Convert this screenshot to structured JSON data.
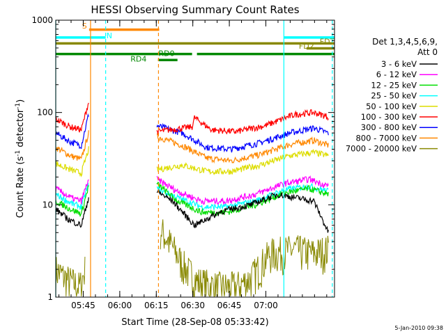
{
  "chart_data": {
    "type": "line",
    "title": "HESSI Observing Summary Count Rates",
    "xlabel": "Start Time (28-Sep-08 05:33:42)",
    "ylabel_parts": [
      "Count Rate (s",
      "-1",
      " detector",
      "-1",
      ")"
    ],
    "ylog": true,
    "xlim_min": [
      0,
      114.5
    ],
    "ylim": [
      1,
      1000
    ],
    "x_ticks": [
      {
        "m": 11.3,
        "label": "05:45"
      },
      {
        "m": 26.3,
        "label": "06:00"
      },
      {
        "m": 41.3,
        "label": "06:15"
      },
      {
        "m": 56.3,
        "label": "06:30"
      },
      {
        "m": 71.3,
        "label": "06:45"
      },
      {
        "m": 86.3,
        "label": "07:00"
      }
    ],
    "y_ticks": [
      {
        "v": 1,
        "label": "1"
      },
      {
        "v": 10,
        "label": "10"
      },
      {
        "v": 100,
        "label": "100"
      },
      {
        "v": 1000,
        "label": "1000"
      }
    ],
    "legend": {
      "header": [
        "Det 1,3,4,5,6,9,",
        "Att 0"
      ],
      "placement": "right"
    },
    "series": [
      {
        "name": "3 - 6 keV",
        "color": "#000000",
        "values": [
          {
            "x": 0,
            "y": 9
          },
          {
            "x": 5,
            "y": 7
          },
          {
            "x": 10.5,
            "y": 6
          },
          {
            "x": 13.5,
            "y": 12
          },
          {
            "x": 41.5,
            "y": 14
          },
          {
            "x": 48,
            "y": 11
          },
          {
            "x": 57,
            "y": 6
          },
          {
            "x": 68,
            "y": 8.5
          },
          {
            "x": 80,
            "y": 10
          },
          {
            "x": 91,
            "y": 13
          },
          {
            "x": 106,
            "y": 11
          },
          {
            "x": 112,
            "y": 5
          }
        ]
      },
      {
        "name": "6 - 12 keV",
        "color": "#ff00ff",
        "values": [
          {
            "x": 0,
            "y": 15
          },
          {
            "x": 6,
            "y": 12
          },
          {
            "x": 10.5,
            "y": 11
          },
          {
            "x": 13.5,
            "y": 19
          },
          {
            "x": 41.5,
            "y": 19
          },
          {
            "x": 50,
            "y": 14
          },
          {
            "x": 60,
            "y": 11
          },
          {
            "x": 70,
            "y": 11
          },
          {
            "x": 82,
            "y": 13
          },
          {
            "x": 94,
            "y": 17
          },
          {
            "x": 104,
            "y": 19
          },
          {
            "x": 112,
            "y": 16
          }
        ]
      },
      {
        "name": "12 - 25 keV",
        "color": "#00dd00",
        "values": [
          {
            "x": 0,
            "y": 11
          },
          {
            "x": 6,
            "y": 9
          },
          {
            "x": 10.5,
            "y": 8
          },
          {
            "x": 13.5,
            "y": 16
          },
          {
            "x": 41.5,
            "y": 17
          },
          {
            "x": 50,
            "y": 11
          },
          {
            "x": 60,
            "y": 8.3
          },
          {
            "x": 70,
            "y": 8.3
          },
          {
            "x": 82,
            "y": 10
          },
          {
            "x": 94,
            "y": 13.5
          },
          {
            "x": 104,
            "y": 15
          },
          {
            "x": 112,
            "y": 13
          }
        ]
      },
      {
        "name": "25 - 50 keV",
        "color": "#00ffff",
        "values": [
          {
            "x": 0,
            "y": 13
          },
          {
            "x": 6,
            "y": 10.5
          },
          {
            "x": 10.5,
            "y": 9.5
          },
          {
            "x": 13.5,
            "y": 17
          },
          {
            "x": 41.5,
            "y": 15
          },
          {
            "x": 50,
            "y": 12
          },
          {
            "x": 60,
            "y": 9.5
          },
          {
            "x": 70,
            "y": 9.5
          },
          {
            "x": 82,
            "y": 11
          },
          {
            "x": 94,
            "y": 14.5
          },
          {
            "x": 104,
            "y": 16
          },
          {
            "x": 112,
            "y": 14
          }
        ]
      },
      {
        "name": "50 - 100 keV",
        "color": "#dddd00",
        "values": [
          {
            "x": 0,
            "y": 28
          },
          {
            "x": 6,
            "y": 24
          },
          {
            "x": 10.5,
            "y": 22
          },
          {
            "x": 13.5,
            "y": 40
          },
          {
            "x": 41.5,
            "y": 24
          },
          {
            "x": 52,
            "y": 27
          },
          {
            "x": 62,
            "y": 23
          },
          {
            "x": 72,
            "y": 23
          },
          {
            "x": 84,
            "y": 27
          },
          {
            "x": 96,
            "y": 34
          },
          {
            "x": 106,
            "y": 37
          },
          {
            "x": 112,
            "y": 34
          }
        ]
      },
      {
        "name": "100 - 300 keV",
        "color": "#ff0000",
        "values": [
          {
            "x": 0,
            "y": 85
          },
          {
            "x": 6,
            "y": 70
          },
          {
            "x": 10.5,
            "y": 65
          },
          {
            "x": 13.5,
            "y": 130
          },
          {
            "x": 41.5,
            "y": 62
          },
          {
            "x": 56,
            "y": 70
          },
          {
            "x": 57,
            "y": 88
          },
          {
            "x": 64,
            "y": 65
          },
          {
            "x": 74,
            "y": 62
          },
          {
            "x": 86,
            "y": 72
          },
          {
            "x": 98,
            "y": 95
          },
          {
            "x": 106,
            "y": 100
          },
          {
            "x": 112,
            "y": 90
          }
        ]
      },
      {
        "name": "300 - 800 keV",
        "color": "#0000ff",
        "values": [
          {
            "x": 0,
            "y": 60
          },
          {
            "x": 6,
            "y": 48
          },
          {
            "x": 10.5,
            "y": 44
          },
          {
            "x": 13.5,
            "y": 95
          },
          {
            "x": 41.5,
            "y": 72
          },
          {
            "x": 52,
            "y": 60
          },
          {
            "x": 62,
            "y": 42
          },
          {
            "x": 72,
            "y": 40
          },
          {
            "x": 84,
            "y": 47
          },
          {
            "x": 96,
            "y": 60
          },
          {
            "x": 106,
            "y": 68
          },
          {
            "x": 112,
            "y": 60
          }
        ]
      },
      {
        "name": "800 - 7000 keV",
        "color": "#ff8800",
        "values": [
          {
            "x": 0,
            "y": 42
          },
          {
            "x": 6,
            "y": 34
          },
          {
            "x": 10.5,
            "y": 31
          },
          {
            "x": 13.5,
            "y": 60
          },
          {
            "x": 41.5,
            "y": 55
          },
          {
            "x": 52,
            "y": 44
          },
          {
            "x": 62,
            "y": 32
          },
          {
            "x": 72,
            "y": 30
          },
          {
            "x": 84,
            "y": 35
          },
          {
            "x": 96,
            "y": 45
          },
          {
            "x": 106,
            "y": 50
          },
          {
            "x": 112,
            "y": 44
          }
        ]
      },
      {
        "name": "7000 - 20000 keV",
        "color": "#888800",
        "values": [
          {
            "x": 0,
            "y": 2
          },
          {
            "x": 4,
            "y": 1.6
          },
          {
            "x": 10,
            "y": 1.3
          },
          {
            "x": 12,
            "y": 2
          },
          {
            "x": 43,
            "y": 5.5
          },
          {
            "x": 48,
            "y": 3.5
          },
          {
            "x": 52,
            "y": 2.3
          },
          {
            "x": 58,
            "y": 1.5
          },
          {
            "x": 66,
            "y": 1.3
          },
          {
            "x": 74,
            "y": 1.3
          },
          {
            "x": 80,
            "y": 1.6
          },
          {
            "x": 88,
            "y": 3
          },
          {
            "x": 98,
            "y": 3.3
          },
          {
            "x": 106,
            "y": 3
          },
          {
            "x": 112,
            "y": 3.3
          }
        ]
      }
    ],
    "flags": [
      {
        "label": "S",
        "color": "#ff8800",
        "y": 790,
        "x0": 13.7,
        "x1": 42.5,
        "label_m": 11.8,
        "label_y": 870
      },
      {
        "label": "N",
        "color": "#00ffff",
        "y": 650,
        "x0": 0,
        "x1": 20.5,
        "label_m": 22,
        "label_y": 680
      },
      {
        "label": "N",
        "color": "#00ffff",
        "y": 650,
        "x0": 93.7,
        "x1": 114.5
      },
      {
        "label": "FDT",
        "color": "#888800",
        "y": 560,
        "x0": 0,
        "x1": 114.5,
        "label_m": 111.5,
        "label_y": 590
      },
      {
        "label": "FD2",
        "color": "#888800",
        "y": 495,
        "x0": 103,
        "x1": 114.5,
        "label_m": 103,
        "label_y": 525
      },
      {
        "label": "RD0",
        "color": "#008800",
        "y": 430,
        "x0": 0,
        "x1": 56,
        "label_m": 45.5,
        "label_y": 440
      },
      {
        "label": "RD0",
        "color": "#008800",
        "y": 430,
        "x0": 58,
        "x1": 114.5
      },
      {
        "label": "RD4",
        "color": "#008800",
        "y": 370,
        "x0": 42,
        "x1": 50,
        "label_m": 34,
        "label_y": 380
      }
    ],
    "vlines": [
      {
        "m": 0,
        "color": "#00ffff",
        "dash": false
      },
      {
        "m": 14.3,
        "color": "#ff8800",
        "dash": false
      },
      {
        "m": 20.5,
        "color": "#00ffff",
        "dash": true
      },
      {
        "m": 42.2,
        "color": "#ff8800",
        "dash": true
      },
      {
        "m": 93.7,
        "color": "#00ffff",
        "dash": false
      },
      {
        "m": 113.6,
        "color": "#00ffff",
        "dash": true
      }
    ]
  },
  "footer_timestamp": "5-Jan-2010 09:38"
}
